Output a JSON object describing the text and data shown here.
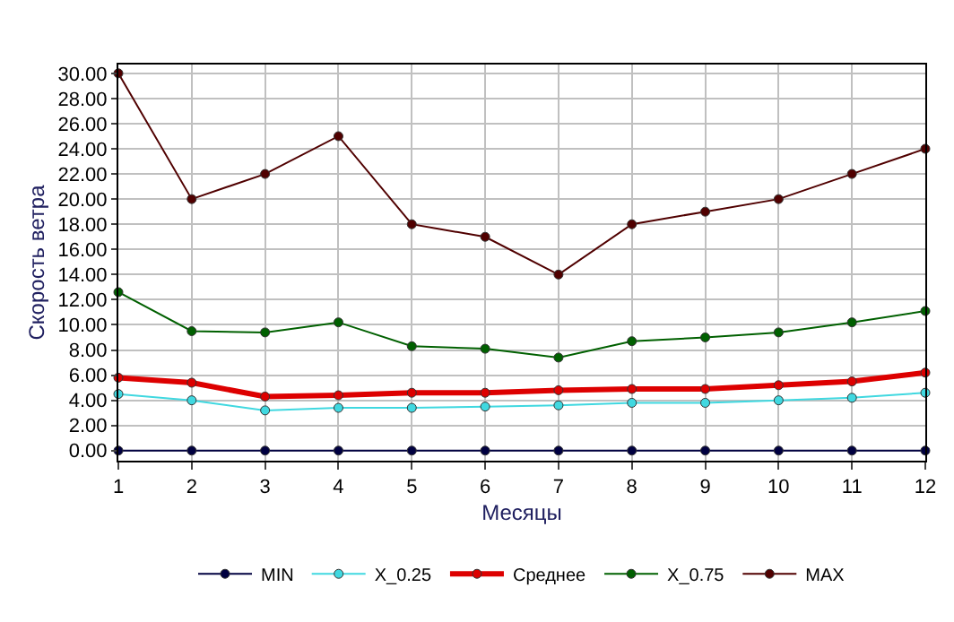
{
  "chart_data": {
    "type": "line",
    "xlabel": "Месяцы",
    "ylabel": "Скорость ветра",
    "x": [
      1,
      2,
      3,
      4,
      5,
      6,
      7,
      8,
      9,
      10,
      11,
      12
    ],
    "xlim": [
      1,
      12
    ],
    "xticks": [
      1,
      2,
      3,
      4,
      5,
      6,
      7,
      8,
      9,
      10,
      11,
      12
    ],
    "ylim": [
      -0.8,
      30.7
    ],
    "yticks": [
      {
        "value": 0,
        "label": "0.00"
      },
      {
        "value": 2,
        "label": "2.00"
      },
      {
        "value": 4,
        "label": "4.00"
      },
      {
        "value": 6,
        "label": "6.00"
      },
      {
        "value": 8,
        "label": "8.00"
      },
      {
        "value": 10,
        "label": "10.00"
      },
      {
        "value": 12,
        "label": "12.00"
      },
      {
        "value": 14,
        "label": "14.00"
      },
      {
        "value": 16,
        "label": "16.00"
      },
      {
        "value": 18,
        "label": "18.00"
      },
      {
        "value": 20,
        "label": "20.00"
      },
      {
        "value": 22,
        "label": "22.00"
      },
      {
        "value": 24,
        "label": "24.00"
      },
      {
        "value": 26,
        "label": "26.00"
      },
      {
        "value": 28,
        "label": "28.00"
      },
      {
        "value": 30,
        "label": "30.00"
      }
    ],
    "grid": true,
    "legend": "bottom",
    "marker": "circle",
    "series": [
      {
        "name": "MIN",
        "color": "#000040",
        "values": [
          0,
          0,
          0,
          0,
          0,
          0,
          0,
          0,
          0,
          0,
          0,
          0
        ]
      },
      {
        "name": "X_0.25",
        "color": "#40d8e0",
        "values": [
          4.5,
          4.0,
          3.2,
          3.4,
          3.4,
          3.5,
          3.6,
          3.8,
          3.8,
          4.0,
          4.2,
          4.6
        ]
      },
      {
        "name": "Среднее",
        "color": "#dd0000",
        "values": [
          5.8,
          5.4,
          4.3,
          4.4,
          4.6,
          4.6,
          4.8,
          4.9,
          4.9,
          5.2,
          5.5,
          6.2
        ]
      },
      {
        "name": "X_0.75",
        "color": "#006000",
        "values": [
          12.6,
          9.5,
          9.4,
          10.2,
          8.3,
          8.1,
          7.4,
          8.7,
          9.0,
          9.4,
          10.2,
          11.1
        ]
      },
      {
        "name": "MAX",
        "color": "#500000",
        "values": [
          30,
          20,
          22,
          25,
          18,
          17,
          14,
          18,
          19,
          20,
          22,
          24
        ]
      }
    ]
  }
}
